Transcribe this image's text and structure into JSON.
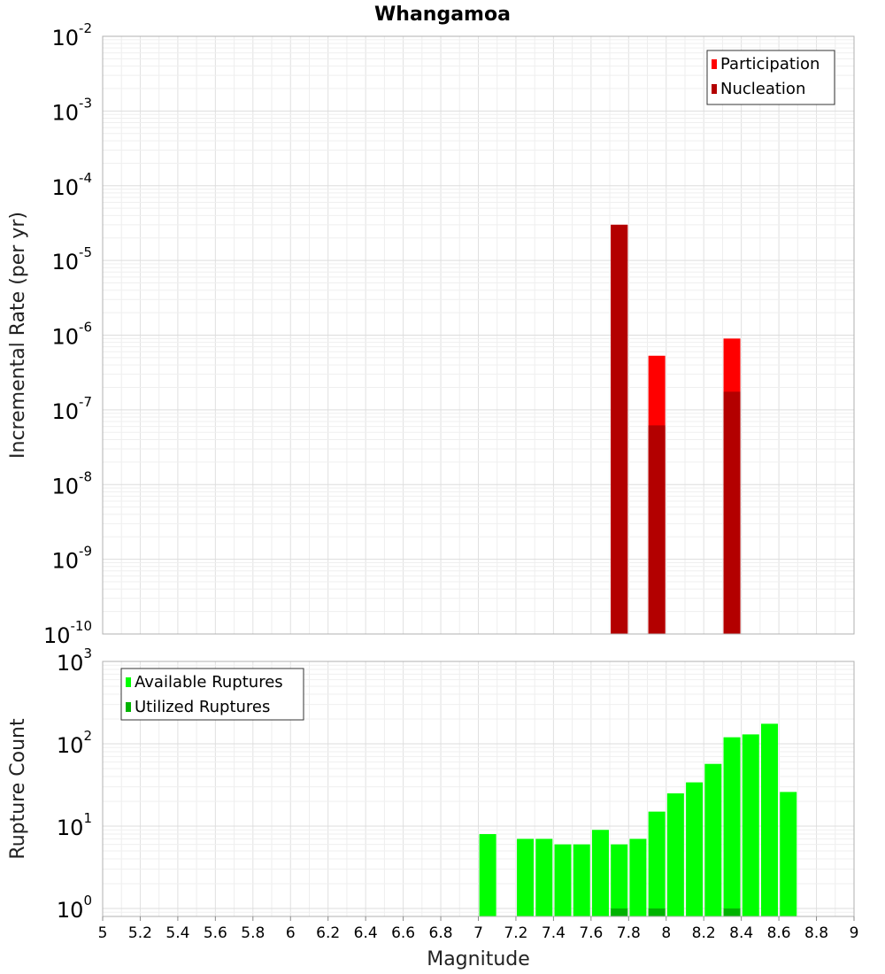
{
  "chart_data": [
    {
      "type": "bar",
      "title": "Whangamoa",
      "xlabel": "",
      "ylabel": "Incremental Rate (per yr)",
      "xlim": [
        5,
        9
      ],
      "ylim": [
        1e-10,
        0.01
      ],
      "yscale": "log",
      "ytick_base": "10",
      "ytick_exponents": [
        "-10",
        "-9",
        "-8",
        "-7",
        "-6",
        "-5",
        "-4",
        "-3",
        "-2"
      ],
      "grid": true,
      "legend_position": "top-right",
      "series": [
        {
          "name": "Participation",
          "color": "#ff0000",
          "x": [
            7.75,
            7.95,
            8.35
          ],
          "values": [
            3e-05,
            5.3e-07,
            9e-07
          ]
        },
        {
          "name": "Nucleation",
          "color": "#b30000",
          "x": [
            7.75,
            7.95,
            8.35
          ],
          "values": [
            3e-05,
            6.2e-08,
            1.75e-07
          ]
        }
      ]
    },
    {
      "type": "bar",
      "xlabel": "Magnitude",
      "ylabel": "Rupture Count",
      "xlim": [
        5,
        9
      ],
      "ylim": [
        0.8,
        1000
      ],
      "yscale": "log",
      "ytick_base": "10",
      "ytick_exponents": [
        "0",
        "1",
        "2",
        "3"
      ],
      "xticks": [
        "5",
        "5.2",
        "5.4",
        "5.6",
        "5.8",
        "6",
        "6.2",
        "6.4",
        "6.6",
        "6.8",
        "7",
        "7.2",
        "7.4",
        "7.6",
        "7.8",
        "8",
        "8.2",
        "8.4",
        "8.6",
        "8.8",
        "9"
      ],
      "grid": true,
      "legend_position": "top-left",
      "series": [
        {
          "name": "Available Ruptures",
          "color": "#00ff00",
          "x": [
            7.05,
            7.25,
            7.35,
            7.45,
            7.55,
            7.65,
            7.75,
            7.85,
            7.95,
            8.05,
            8.15,
            8.25,
            8.35,
            8.45,
            8.55,
            8.65
          ],
          "values": [
            8,
            7,
            7,
            6,
            6,
            9,
            6,
            7,
            15,
            25,
            34,
            57,
            120,
            130,
            175,
            26
          ]
        },
        {
          "name": "Utilized Ruptures",
          "color": "#00b300",
          "x": [
            7.75,
            7.95,
            8.35
          ],
          "values": [
            1,
            1,
            1
          ]
        }
      ]
    }
  ]
}
